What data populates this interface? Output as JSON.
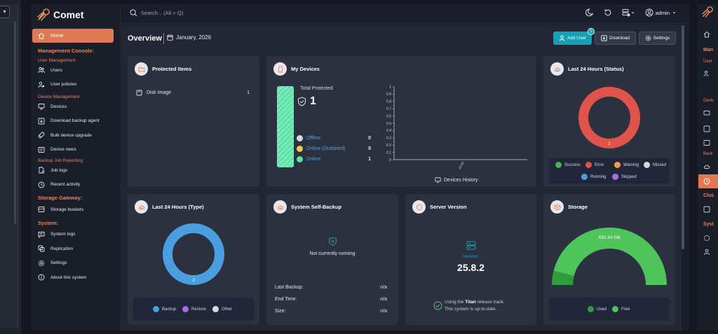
{
  "brand": {
    "name": "Comet"
  },
  "search": {
    "placeholder": "Search... (Alt + Q)"
  },
  "topbar": {
    "user": "admin"
  },
  "nav": {
    "home": "Home",
    "sections": [
      {
        "title": "Management Console:",
        "groups": [
          {
            "title": "User Management",
            "items": [
              {
                "label": "Users",
                "icon": "users-icon"
              },
              {
                "label": "User policies",
                "icon": "user-policies-icon"
              }
            ]
          },
          {
            "title": "Device Management",
            "items": [
              {
                "label": "Devices",
                "icon": "monitor-icon"
              },
              {
                "label": "Download backup agent",
                "icon": "download-icon"
              },
              {
                "label": "Bulk device upgrade",
                "icon": "rocket-icon"
              },
              {
                "label": "Device news",
                "icon": "news-icon"
              }
            ]
          },
          {
            "title": "Backup Job Reporting",
            "items": [
              {
                "label": "Job logs",
                "icon": "job-logs-icon"
              },
              {
                "label": "Recent activity",
                "icon": "clock-icon"
              }
            ]
          }
        ]
      },
      {
        "title": "Storage Gateway:",
        "items": [
          {
            "label": "Storage buckets",
            "icon": "bucket-icon"
          }
        ]
      },
      {
        "title": "System:",
        "items": [
          {
            "label": "System logs",
            "icon": "message-icon"
          },
          {
            "label": "Replication",
            "icon": "replication-icon"
          },
          {
            "label": "Settings",
            "icon": "gear-icon"
          },
          {
            "label": "About this system",
            "icon": "info-icon"
          }
        ]
      }
    ]
  },
  "overview": {
    "title": "Overview",
    "date": "January, 2026",
    "buttons": {
      "add_user": "Add User",
      "add_user_badge": "1",
      "download": "Download",
      "settings": "Settings"
    }
  },
  "protected_items": {
    "title": "Protected Items",
    "rows": [
      {
        "label": "Disk Image",
        "value": "1"
      }
    ]
  },
  "my_devices": {
    "title": "My Devices",
    "total_label": "Total Protected",
    "total_value": "1",
    "statuses": [
      {
        "label": "Offline",
        "value": "0",
        "color": "#d9d9d9"
      },
      {
        "label": "Online (Outdated)",
        "value": "0",
        "color": "#f2c94c"
      },
      {
        "label": "Online",
        "value": "1",
        "color": "#5ee0a8"
      }
    ],
    "history_label": "Devices History",
    "chart_data": {
      "type": "line",
      "x": [
        "01/26"
      ],
      "ylim": [
        0,
        1
      ],
      "yticks": [
        "0",
        "0.1",
        "0.2",
        "0.3",
        "0.4",
        "0.5",
        "0.6",
        "0.7",
        "0.8",
        "0.9",
        "1"
      ],
      "series": []
    }
  },
  "status_24h": {
    "title": "Last 24 Hours (Status)",
    "center_value": "2",
    "legend": [
      {
        "label": "Success",
        "color": "#4caf50"
      },
      {
        "label": "Error",
        "color": "#e0534a"
      },
      {
        "label": "Warning",
        "color": "#f0a04b"
      },
      {
        "label": "Missed",
        "color": "#d9d9d9"
      },
      {
        "label": "Running",
        "color": "#4a9fe0"
      },
      {
        "label": "Skipped",
        "color": "#a66ee0"
      }
    ],
    "chart_data": {
      "type": "pie",
      "categories": [
        "Error"
      ],
      "values": [
        2
      ]
    }
  },
  "type_24h": {
    "title": "Last 24 Hours (Type)",
    "center_value": "2",
    "legend": [
      {
        "label": "Backup",
        "color": "#4a9fe0"
      },
      {
        "label": "Restore",
        "color": "#a66ee0"
      },
      {
        "label": "Other",
        "color": "#d9d9d9"
      }
    ],
    "chart_data": {
      "type": "pie",
      "categories": [
        "Backup"
      ],
      "values": [
        2
      ]
    }
  },
  "self_backup": {
    "title": "System Self-Backup",
    "state": "Not currently running",
    "rows": [
      {
        "label": "Last Backup:",
        "value": "n/a"
      },
      {
        "label": "End Time:",
        "value": "n/a"
      },
      {
        "label": "Size:",
        "value": "n/a"
      }
    ]
  },
  "server_version": {
    "title": "Server Version",
    "version_label": "Version:",
    "version": "25.8.2",
    "track_pre": "Using the ",
    "track_name": "Titan",
    "track_post": " release track.",
    "uptodate": "This system is up-to-date."
  },
  "storage": {
    "title": "Storage",
    "used_label_value": "432.34 GB",
    "legend": [
      {
        "label": "Used",
        "color": "#2e9e3c"
      },
      {
        "label": "Free",
        "color": "#4fc45a"
      }
    ],
    "chart_data": {
      "type": "pie",
      "categories": [
        "Used",
        "Free"
      ],
      "values": [
        0.08,
        0.92
      ]
    }
  },
  "right_bleed": {
    "texts": [
      "Man",
      "User",
      "Devic",
      "Back",
      "Clus",
      "Syst"
    ]
  }
}
